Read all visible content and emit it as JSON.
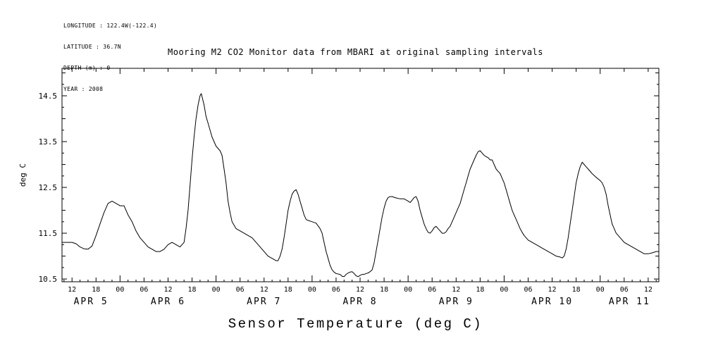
{
  "meta": {
    "lines": [
      "LONGITUDE : 122.4W(-122.4)",
      "LATITUDE : 36.7N",
      "DEPTH (m) : 0",
      "YEAR : 2008"
    ]
  },
  "chart_data": {
    "type": "line",
    "title": "Mooring M2 CO2 Monitor data from MBARI at original sampling intervals",
    "ylabel": "deg C",
    "xlabel": "Sensor Temperature (deg C)",
    "x_unit": "hours since 2008-04-05 00:00",
    "xlim": [
      9.5,
      158.67
    ],
    "ylim": [
      10.44,
      15.1
    ],
    "grid": false,
    "legend": "none",
    "line_color": "#000000",
    "y_ticks": [
      10.5,
      11.5,
      12.5,
      13.5,
      14.5
    ],
    "y_tick_labels": [
      "10.5",
      "11.5",
      "12.5",
      "13.5",
      "14.5"
    ],
    "y_minor_step": 0.25,
    "x_minor_step_hours": 2,
    "x_major_step_hours": 6,
    "x_day_step_hours": 24,
    "x_tick_hours": [
      12,
      18,
      24,
      30,
      36,
      42,
      48,
      54,
      60,
      66,
      72,
      78,
      84,
      90,
      96,
      102,
      108,
      114,
      120,
      126,
      132,
      138,
      144,
      150,
      156
    ],
    "x_tick_labels": [
      "12",
      "18",
      "00",
      "06",
      "12",
      "18",
      "00",
      "06",
      "12",
      "18",
      "00",
      "06",
      "12",
      "18",
      "00",
      "06",
      "12",
      "18",
      "00",
      "06",
      "12",
      "18",
      "00",
      "06",
      "12"
    ],
    "x_date_labels": [
      "APR 5",
      "APR 6",
      "APR 7",
      "APR 8",
      "APR 9",
      "APR 10",
      "APR 11"
    ],
    "x_date_day_starts": [
      0,
      24,
      48,
      72,
      96,
      120,
      144
    ],
    "series": [
      {
        "name": "Sensor Temperature",
        "points": [
          [
            9.5,
            11.3
          ],
          [
            11,
            11.3
          ],
          [
            12,
            11.3
          ],
          [
            13,
            11.27
          ],
          [
            14,
            11.2
          ],
          [
            15,
            11.16
          ],
          [
            16,
            11.15
          ],
          [
            17,
            11.22
          ],
          [
            18,
            11.45
          ],
          [
            19,
            11.7
          ],
          [
            20,
            11.95
          ],
          [
            21,
            12.15
          ],
          [
            22,
            12.2
          ],
          [
            23,
            12.15
          ],
          [
            24,
            12.1
          ],
          [
            25,
            12.1
          ],
          [
            26,
            11.9
          ],
          [
            27,
            11.75
          ],
          [
            28,
            11.55
          ],
          [
            29,
            11.4
          ],
          [
            30,
            11.3
          ],
          [
            31,
            11.2
          ],
          [
            32,
            11.15
          ],
          [
            33,
            11.1
          ],
          [
            34,
            11.1
          ],
          [
            35,
            11.15
          ],
          [
            36,
            11.25
          ],
          [
            37,
            11.3
          ],
          [
            38,
            11.25
          ],
          [
            39,
            11.2
          ],
          [
            40,
            11.3
          ],
          [
            40.5,
            11.6
          ],
          [
            41,
            12.0
          ],
          [
            41.5,
            12.55
          ],
          [
            42,
            13.1
          ],
          [
            42.5,
            13.6
          ],
          [
            43,
            14.0
          ],
          [
            43.5,
            14.3
          ],
          [
            44,
            14.5
          ],
          [
            44.3,
            14.55
          ],
          [
            45,
            14.3
          ],
          [
            45.5,
            14.05
          ],
          [
            46,
            13.9
          ],
          [
            47,
            13.6
          ],
          [
            48,
            13.4
          ],
          [
            49,
            13.3
          ],
          [
            49.5,
            13.2
          ],
          [
            50,
            12.9
          ],
          [
            50.5,
            12.6
          ],
          [
            51,
            12.2
          ],
          [
            51.5,
            11.95
          ],
          [
            52,
            11.75
          ],
          [
            53,
            11.6
          ],
          [
            54,
            11.55
          ],
          [
            55,
            11.5
          ],
          [
            56,
            11.45
          ],
          [
            57,
            11.4
          ],
          [
            58,
            11.3
          ],
          [
            59,
            11.2
          ],
          [
            60,
            11.1
          ],
          [
            61,
            11.0
          ],
          [
            62,
            10.95
          ],
          [
            63,
            10.9
          ],
          [
            63.5,
            10.9
          ],
          [
            64,
            11.0
          ],
          [
            64.5,
            11.15
          ],
          [
            65,
            11.4
          ],
          [
            65.5,
            11.7
          ],
          [
            66,
            12.0
          ],
          [
            66.5,
            12.2
          ],
          [
            67,
            12.35
          ],
          [
            67.5,
            12.42
          ],
          [
            68,
            12.45
          ],
          [
            68.5,
            12.35
          ],
          [
            69,
            12.2
          ],
          [
            69.5,
            12.05
          ],
          [
            70,
            11.9
          ],
          [
            70.5,
            11.8
          ],
          [
            71,
            11.78
          ],
          [
            72,
            11.75
          ],
          [
            73,
            11.72
          ],
          [
            74,
            11.6
          ],
          [
            74.5,
            11.5
          ],
          [
            75,
            11.3
          ],
          [
            75.5,
            11.1
          ],
          [
            76,
            10.95
          ],
          [
            76.5,
            10.8
          ],
          [
            77,
            10.7
          ],
          [
            77.5,
            10.65
          ],
          [
            78,
            10.62
          ],
          [
            79,
            10.6
          ],
          [
            79.5,
            10.56
          ],
          [
            80,
            10.55
          ],
          [
            80.5,
            10.6
          ],
          [
            81,
            10.63
          ],
          [
            81.5,
            10.65
          ],
          [
            82,
            10.66
          ],
          [
            82.5,
            10.62
          ],
          [
            83,
            10.57
          ],
          [
            83.5,
            10.55
          ],
          [
            84,
            10.58
          ],
          [
            84.5,
            10.6
          ],
          [
            85,
            10.6
          ],
          [
            85.5,
            10.62
          ],
          [
            86,
            10.63
          ],
          [
            86.5,
            10.66
          ],
          [
            87,
            10.7
          ],
          [
            87.5,
            10.85
          ],
          [
            88,
            11.1
          ],
          [
            88.5,
            11.35
          ],
          [
            89,
            11.6
          ],
          [
            89.5,
            11.85
          ],
          [
            90,
            12.05
          ],
          [
            90.5,
            12.2
          ],
          [
            91,
            12.28
          ],
          [
            91.5,
            12.3
          ],
          [
            92,
            12.3
          ],
          [
            93,
            12.27
          ],
          [
            94,
            12.25
          ],
          [
            95,
            12.25
          ],
          [
            96,
            12.2
          ],
          [
            96.5,
            12.17
          ],
          [
            97,
            12.22
          ],
          [
            97.5,
            12.28
          ],
          [
            98,
            12.3
          ],
          [
            98.5,
            12.2
          ],
          [
            99,
            12.0
          ],
          [
            99.5,
            11.85
          ],
          [
            100,
            11.7
          ],
          [
            100.5,
            11.6
          ],
          [
            101,
            11.52
          ],
          [
            101.5,
            11.5
          ],
          [
            102,
            11.55
          ],
          [
            102.5,
            11.62
          ],
          [
            103,
            11.65
          ],
          [
            103.5,
            11.6
          ],
          [
            104,
            11.55
          ],
          [
            104.5,
            11.5
          ],
          [
            105,
            11.5
          ],
          [
            105.5,
            11.53
          ],
          [
            106,
            11.6
          ],
          [
            106.5,
            11.65
          ],
          [
            107,
            11.75
          ],
          [
            107.5,
            11.85
          ],
          [
            108,
            11.95
          ],
          [
            108.5,
            12.05
          ],
          [
            109,
            12.15
          ],
          [
            109.5,
            12.3
          ],
          [
            110,
            12.45
          ],
          [
            110.5,
            12.6
          ],
          [
            111,
            12.75
          ],
          [
            111.5,
            12.9
          ],
          [
            112,
            13.0
          ],
          [
            112.5,
            13.1
          ],
          [
            113,
            13.2
          ],
          [
            113.5,
            13.28
          ],
          [
            114,
            13.3
          ],
          [
            114.5,
            13.25
          ],
          [
            115,
            13.2
          ],
          [
            115.5,
            13.17
          ],
          [
            116,
            13.15
          ],
          [
            116.5,
            13.1
          ],
          [
            117,
            13.1
          ],
          [
            117.5,
            13.0
          ],
          [
            118,
            12.9
          ],
          [
            118.5,
            12.85
          ],
          [
            119,
            12.8
          ],
          [
            119.5,
            12.7
          ],
          [
            120,
            12.6
          ],
          [
            120.5,
            12.45
          ],
          [
            121,
            12.3
          ],
          [
            121.5,
            12.15
          ],
          [
            122,
            12.0
          ],
          [
            122.5,
            11.9
          ],
          [
            123,
            11.8
          ],
          [
            123.5,
            11.7
          ],
          [
            124,
            11.6
          ],
          [
            124.5,
            11.52
          ],
          [
            125,
            11.45
          ],
          [
            126,
            11.35
          ],
          [
            127,
            11.3
          ],
          [
            128,
            11.25
          ],
          [
            129,
            11.2
          ],
          [
            130,
            11.15
          ],
          [
            131,
            11.1
          ],
          [
            132,
            11.05
          ],
          [
            133,
            11.0
          ],
          [
            134,
            10.98
          ],
          [
            134.5,
            10.96
          ],
          [
            135,
            11.0
          ],
          [
            135.5,
            11.15
          ],
          [
            136,
            11.4
          ],
          [
            136.5,
            11.7
          ],
          [
            137,
            12.0
          ],
          [
            137.5,
            12.3
          ],
          [
            138,
            12.6
          ],
          [
            138.5,
            12.8
          ],
          [
            139,
            12.95
          ],
          [
            139.5,
            13.05
          ],
          [
            140,
            13.0
          ],
          [
            140.5,
            12.95
          ],
          [
            141,
            12.9
          ],
          [
            142,
            12.8
          ],
          [
            143,
            12.72
          ],
          [
            144,
            12.65
          ],
          [
            144.5,
            12.6
          ],
          [
            145,
            12.5
          ],
          [
            145.5,
            12.35
          ],
          [
            146,
            12.1
          ],
          [
            146.5,
            11.9
          ],
          [
            147,
            11.7
          ],
          [
            147.5,
            11.6
          ],
          [
            148,
            11.5
          ],
          [
            148.5,
            11.45
          ],
          [
            149,
            11.4
          ],
          [
            150,
            11.3
          ],
          [
            151,
            11.25
          ],
          [
            152,
            11.2
          ],
          [
            153,
            11.15
          ],
          [
            154,
            11.1
          ],
          [
            155,
            11.05
          ],
          [
            156,
            11.05
          ],
          [
            157,
            11.07
          ],
          [
            158,
            11.1
          ],
          [
            158.6,
            11.1
          ]
        ]
      }
    ]
  }
}
